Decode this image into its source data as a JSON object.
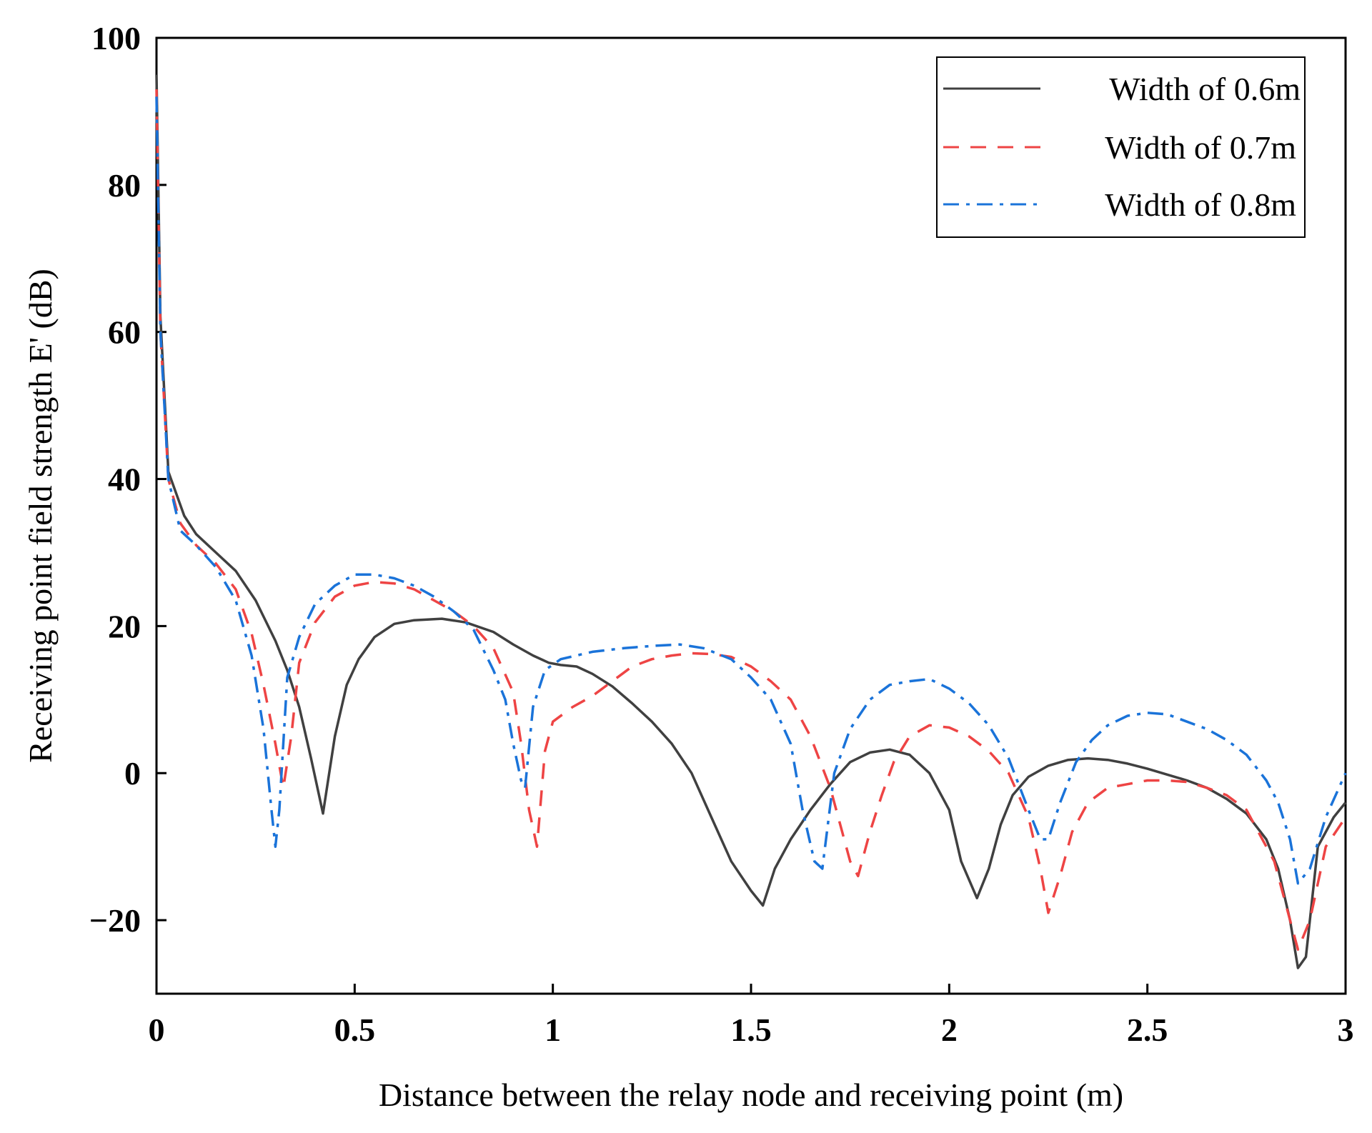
{
  "chart_data": {
    "type": "line",
    "title": "",
    "xlabel": "Distance between the relay node and receiving point (m)",
    "ylabel": "Receiving point field strength E' (dB)",
    "xlim": [
      0,
      3
    ],
    "ylim": [
      -30,
      100
    ],
    "xticks": [
      0,
      0.5,
      1,
      1.5,
      2,
      2.5,
      3
    ],
    "xtick_labels": [
      "0",
      "0.5",
      "1",
      "1.5",
      "2",
      "2.5",
      "3"
    ],
    "yticks": [
      -20,
      0,
      20,
      40,
      60,
      80,
      100
    ],
    "ytick_labels": [
      "−20",
      "0",
      "20",
      "40",
      "60",
      "80",
      "100"
    ],
    "grid": false,
    "legend_position": "top-right",
    "series": [
      {
        "name": "Width of 0.6m",
        "color": "#404040",
        "dash": "solid",
        "x": [
          0,
          0.01,
          0.03,
          0.07,
          0.1,
          0.15,
          0.2,
          0.25,
          0.3,
          0.33,
          0.36,
          0.39,
          0.42,
          0.45,
          0.48,
          0.51,
          0.55,
          0.6,
          0.65,
          0.72,
          0.78,
          0.85,
          0.9,
          0.95,
          0.99,
          1.02,
          1.06,
          1.1,
          1.15,
          1.2,
          1.25,
          1.3,
          1.35,
          1.4,
          1.45,
          1.5,
          1.53,
          1.56,
          1.6,
          1.65,
          1.7,
          1.75,
          1.8,
          1.85,
          1.9,
          1.95,
          2.0,
          2.03,
          2.07,
          2.1,
          2.13,
          2.16,
          2.2,
          2.25,
          2.3,
          2.35,
          2.4,
          2.45,
          2.5,
          2.55,
          2.6,
          2.65,
          2.7,
          2.75,
          2.8,
          2.83,
          2.86,
          2.88,
          2.9,
          2.93,
          2.97,
          3.0
        ],
        "y": [
          95,
          62,
          41,
          35,
          32.5,
          30,
          27.5,
          23.5,
          18,
          14,
          9,
          2,
          -5.5,
          5,
          12,
          15.5,
          18.5,
          20.3,
          20.8,
          21,
          20.5,
          19.2,
          17.5,
          16,
          15,
          14.7,
          14.5,
          13.5,
          11.8,
          9.5,
          7,
          4,
          0,
          -6,
          -12,
          -16,
          -18,
          -13,
          -9,
          -5,
          -1.5,
          1.5,
          2.8,
          3.2,
          2.5,
          0,
          -5,
          -12,
          -17,
          -13,
          -7,
          -3,
          -0.5,
          1,
          1.8,
          2,
          1.8,
          1.3,
          0.6,
          -0.2,
          -1,
          -2,
          -3.5,
          -5.5,
          -9,
          -13,
          -20,
          -26.5,
          -25,
          -10,
          -6,
          -4
        ]
      },
      {
        "name": "Width of 0.7m",
        "color": "#ee4444",
        "dash": "dashed",
        "x": [
          0,
          0.01,
          0.03,
          0.06,
          0.1,
          0.15,
          0.2,
          0.24,
          0.27,
          0.3,
          0.32,
          0.34,
          0.36,
          0.4,
          0.45,
          0.5,
          0.55,
          0.6,
          0.65,
          0.7,
          0.75,
          0.8,
          0.85,
          0.9,
          0.92,
          0.94,
          0.96,
          0.98,
          1.0,
          1.05,
          1.1,
          1.15,
          1.2,
          1.25,
          1.3,
          1.35,
          1.4,
          1.45,
          1.5,
          1.55,
          1.6,
          1.65,
          1.7,
          1.73,
          1.75,
          1.77,
          1.8,
          1.83,
          1.86,
          1.9,
          1.95,
          2.0,
          2.05,
          2.1,
          2.15,
          2.2,
          2.23,
          2.25,
          2.28,
          2.31,
          2.35,
          2.4,
          2.45,
          2.5,
          2.55,
          2.6,
          2.65,
          2.7,
          2.75,
          2.78,
          2.82,
          2.85,
          2.88,
          2.91,
          2.95,
          3.0
        ],
        "y": [
          93,
          60,
          40,
          34,
          31,
          28.5,
          25,
          19,
          12,
          4,
          -2,
          5,
          15,
          20.5,
          24,
          25.5,
          26,
          25.8,
          25,
          23.5,
          22,
          20,
          17,
          11,
          4,
          -5,
          -10,
          3,
          7,
          9,
          10.5,
          12.5,
          14.5,
          15.5,
          16,
          16.3,
          16.2,
          15.8,
          14.5,
          12.5,
          10,
          5,
          -2,
          -8,
          -12,
          -14,
          -8,
          -3,
          1.5,
          5,
          6.5,
          6.2,
          5,
          3,
          0,
          -6,
          -13,
          -19,
          -14,
          -8,
          -4,
          -2,
          -1.5,
          -1,
          -1,
          -1.2,
          -2,
          -3,
          -5,
          -8,
          -12,
          -18,
          -24,
          -20,
          -10,
          -6
        ]
      },
      {
        "name": "Width of 0.8m",
        "color": "#1a73d9",
        "dash": "dashdot",
        "x": [
          0,
          0.01,
          0.03,
          0.06,
          0.1,
          0.15,
          0.2,
          0.24,
          0.27,
          0.29,
          0.3,
          0.31,
          0.33,
          0.36,
          0.4,
          0.45,
          0.5,
          0.55,
          0.6,
          0.65,
          0.7,
          0.75,
          0.8,
          0.85,
          0.88,
          0.9,
          0.92,
          0.93,
          0.95,
          0.98,
          1.02,
          1.1,
          1.18,
          1.25,
          1.32,
          1.38,
          1.45,
          1.5,
          1.55,
          1.6,
          1.63,
          1.66,
          1.68,
          1.71,
          1.75,
          1.8,
          1.85,
          1.9,
          1.95,
          2.0,
          2.05,
          2.1,
          2.15,
          2.2,
          2.23,
          2.25,
          2.28,
          2.32,
          2.36,
          2.4,
          2.45,
          2.5,
          2.55,
          2.6,
          2.65,
          2.7,
          2.75,
          2.8,
          2.83,
          2.86,
          2.88,
          2.91,
          2.95,
          3.0
        ],
        "y": [
          92,
          60,
          40,
          33,
          31,
          28,
          23.5,
          16,
          6,
          -5,
          -10,
          -5,
          13,
          18.5,
          23,
          25.5,
          27,
          27,
          26.5,
          25.5,
          24,
          22,
          19.5,
          14,
          10,
          4,
          -1,
          -2,
          9,
          14,
          15.5,
          16.5,
          17,
          17.3,
          17.5,
          17,
          15.5,
          13,
          10,
          4,
          -5,
          -12,
          -13,
          0,
          6,
          10,
          12,
          12.5,
          12.8,
          11.5,
          9.5,
          6.5,
          2,
          -5,
          -9,
          -9,
          -4,
          1.5,
          4.5,
          6.5,
          7.8,
          8.2,
          8,
          7,
          6,
          4.5,
          2.5,
          -1,
          -4,
          -9,
          -15,
          -13,
          -6,
          0
        ]
      }
    ],
    "legend": {
      "entries": [
        "Width of 0.6m",
        "Width of 0.7m",
        "Width of 0.8m"
      ]
    }
  }
}
